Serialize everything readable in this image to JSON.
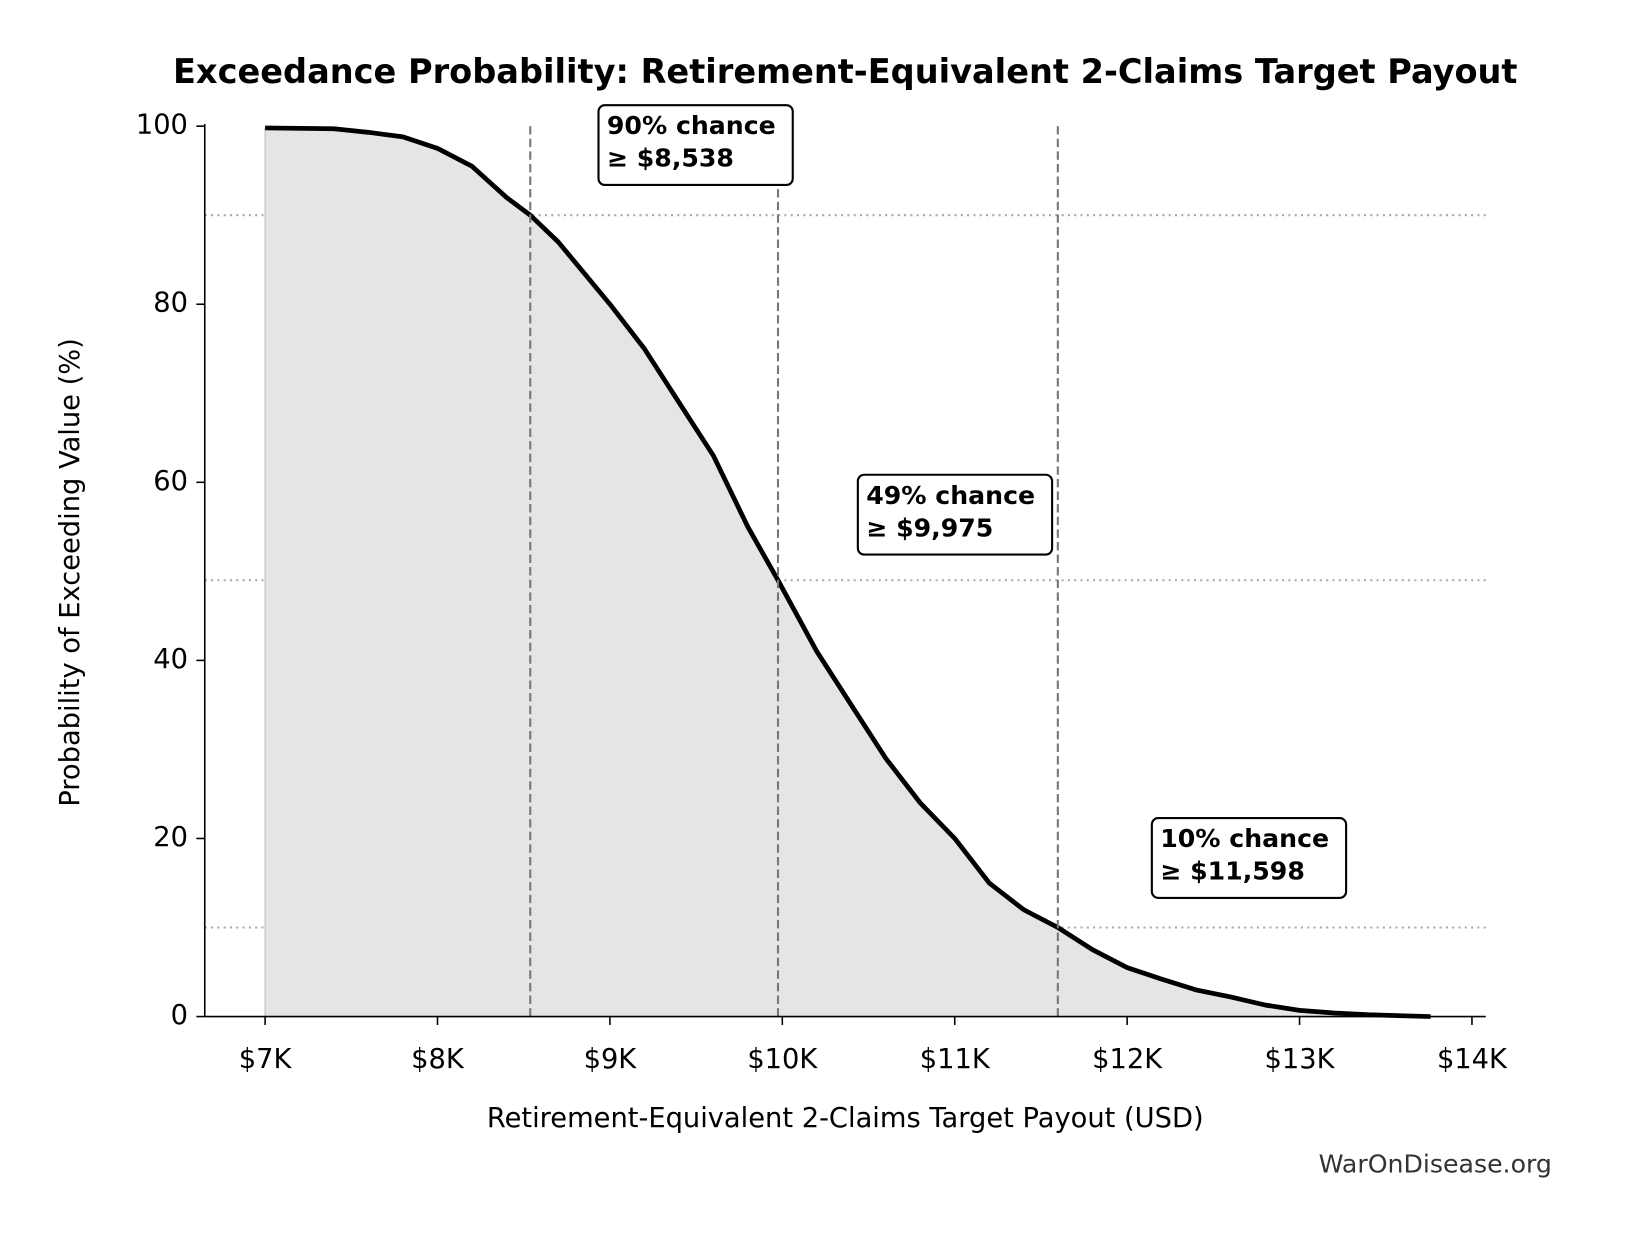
{
  "chart_data": {
    "type": "line",
    "title": "Exceedance Probability: Retirement-Equivalent 2-Claims Target Payout",
    "x_label": "Retirement-Equivalent 2-Claims Target Payout (USD)",
    "y_label": "Probability of Exceeding Value (%)",
    "source": "WarOnDisease.org",
    "x": [
      7000,
      7400,
      7600,
      7800,
      8000,
      8200,
      8400,
      8538,
      8700,
      9000,
      9200,
      9400,
      9600,
      9800,
      9975,
      10200,
      10400,
      10600,
      10800,
      11000,
      11200,
      11400,
      11598,
      11800,
      12000,
      12200,
      12400,
      12600,
      12800,
      13000,
      13200,
      13400,
      13760
    ],
    "series": [
      {
        "color": "#000000",
        "fill": "#e5e5e5",
        "values": [
          99.8,
          99.7,
          99.3,
          98.8,
          97.5,
          95.5,
          92,
          90,
          87,
          80,
          75,
          69,
          63,
          55,
          49,
          41,
          35,
          29,
          24,
          20,
          15,
          12,
          10,
          7.5,
          5.5,
          4.2,
          3,
          2.2,
          1.3,
          0.7,
          0.4,
          0.2,
          0
        ]
      }
    ],
    "xlim": [
      6650,
      14080
    ],
    "ylim": [
      0,
      100
    ],
    "xticks": [
      {
        "value": 7000,
        "label": "$7K"
      },
      {
        "value": 8000,
        "label": "$8K"
      },
      {
        "value": 9000,
        "label": "$9K"
      },
      {
        "value": 10000,
        "label": "$10K"
      },
      {
        "value": 11000,
        "label": "$11K"
      },
      {
        "value": 12000,
        "label": "$12K"
      },
      {
        "value": 13000,
        "label": "$13K"
      },
      {
        "value": 14000,
        "label": "$14K"
      }
    ],
    "yticks": [
      0,
      20,
      40,
      60,
      80,
      100
    ],
    "vlines": [
      8538,
      9975,
      11598
    ],
    "hlines": [
      90,
      49,
      10
    ],
    "annotations": [
      [
        "90% chance",
        "≥ $8,538"
      ],
      [
        "49% chance",
        "≥ $9,975"
      ],
      [
        "10% chance",
        "≥ $11,598"
      ]
    ]
  }
}
